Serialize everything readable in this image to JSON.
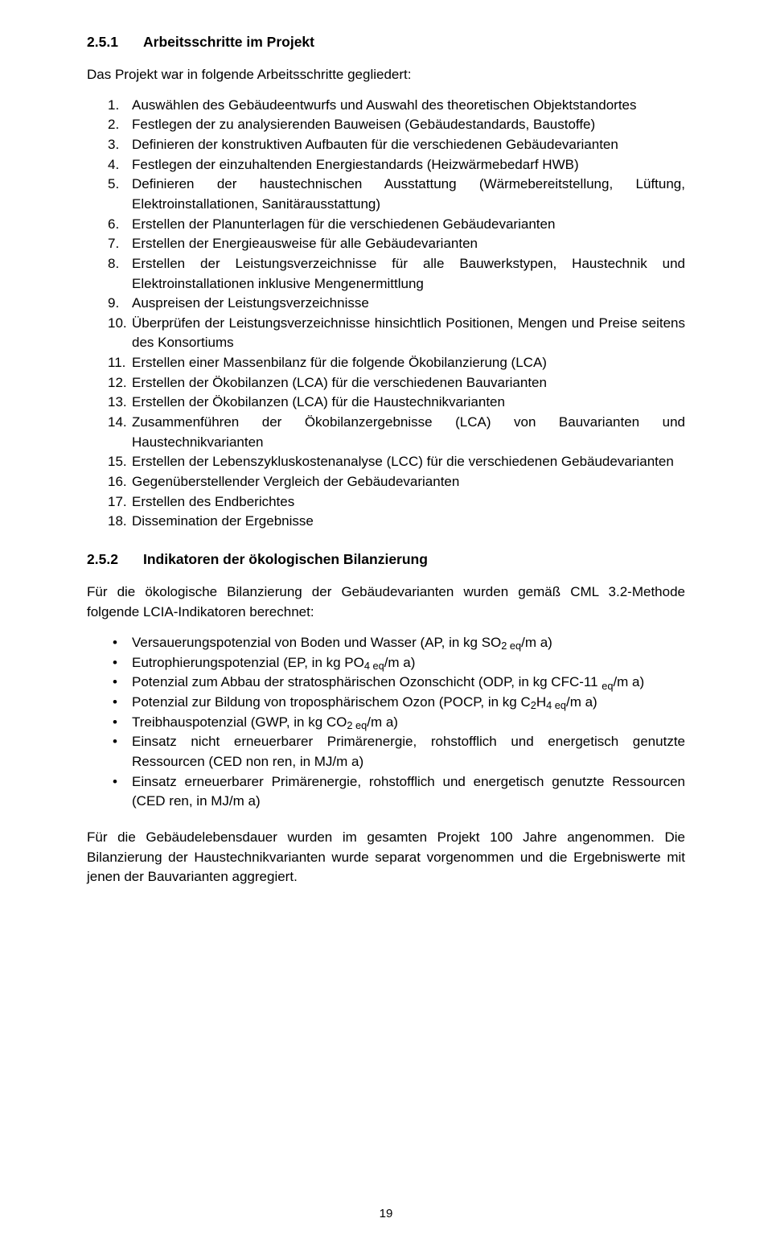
{
  "section1": {
    "number": "2.5.1",
    "title": "Arbeitsschritte im Projekt",
    "intro": "Das Projekt war in folgende Arbeitsschritte gegliedert:",
    "items": [
      {
        "n": "1.",
        "t": "Auswählen des Gebäudeentwurfs und Auswahl des theoretischen Objektstandortes"
      },
      {
        "n": "2.",
        "t": "Festlegen der zu analysierenden Bauweisen (Gebäudestandards, Baustoffe)"
      },
      {
        "n": "3.",
        "t": "Definieren der konstruktiven Aufbauten für die verschiedenen Gebäudevarianten"
      },
      {
        "n": "4.",
        "t": "Festlegen der einzuhaltenden Energiestandards (Heizwärmebedarf HWB)"
      },
      {
        "n": "5.",
        "t": "Definieren der haustechnischen Ausstattung (Wärmebereitstellung, Lüftung, Elektroinstallationen, Sanitärausstattung)"
      },
      {
        "n": "6.",
        "t": "Erstellen der Planunterlagen für die verschiedenen Gebäudevarianten"
      },
      {
        "n": "7.",
        "t": "Erstellen der Energieausweise für alle Gebäudevarianten"
      },
      {
        "n": "8.",
        "t": "Erstellen der Leistungsverzeichnisse für alle Bauwerkstypen, Haustechnik und Elektroinstallationen inklusive Mengenermittlung"
      },
      {
        "n": "9.",
        "t": "Auspreisen der Leistungsverzeichnisse"
      },
      {
        "n": "10.",
        "t": "Überprüfen der Leistungsverzeichnisse hinsichtlich Positionen, Mengen und Preise seitens des Konsortiums"
      },
      {
        "n": "11.",
        "t": "Erstellen einer Massenbilanz für die folgende Ökobilanzierung (LCA)"
      },
      {
        "n": "12.",
        "t": "Erstellen der Ökobilanzen (LCA) für die verschiedenen Bauvarianten"
      },
      {
        "n": "13.",
        "t": "Erstellen der Ökobilanzen (LCA) für die Haustechnikvarianten"
      },
      {
        "n": "14.",
        "t": "Zusammenführen der Ökobilanzergebnisse (LCA) von Bauvarianten und Haustechnikvarianten"
      },
      {
        "n": "15.",
        "t": "Erstellen der Lebenszykluskostenanalyse (LCC) für die verschiedenen Gebäudevarianten"
      },
      {
        "n": "16.",
        "t": "Gegenüberstellender Vergleich der Gebäudevarianten"
      },
      {
        "n": "17.",
        "t": "Erstellen des Endberichtes"
      },
      {
        "n": "18.",
        "t": "Dissemination der Ergebnisse"
      }
    ]
  },
  "section2": {
    "number": "2.5.2",
    "title": "Indikatoren der ökologischen Bilanzierung",
    "intro": "Für die ökologische Bilanzierung der Gebäudevarianten wurden gemäß CML 3.2-Methode folgende LCIA-Indikatoren berechnet:",
    "items": [
      "Versauerungspotenzial von Boden und Wasser (AP, in kg SO<span class=\"sub\">2 eq</span>/m  a)",
      "Eutrophierungspotenzial (EP, in kg PO<span class=\"sub\">4 eq</span>/m  a)",
      "Potenzial zum Abbau der stratosphärischen Ozonschicht (ODP, in kg CFC-11 <span class=\"sub\">eq</span>/m  a)",
      "Potenzial zur Bildung von troposphärischem Ozon (POCP, in kg C<span class=\"sub\">2</span>H<span class=\"sub\">4 eq</span>/m  a)",
      "Treibhauspotenzial (GWP, in kg CO<span class=\"sub\">2 eq</span>/m  a)",
      "Einsatz nicht erneuerbarer Primärenergie, rohstofflich und energetisch genutzte Ressourcen (CED non ren, in MJ/m  a)",
      "Einsatz erneuerbarer Primärenergie, rohstofflich und energetisch genutzte Ressourcen (CED ren, in MJ/m  a)"
    ],
    "closing": "Für die Gebäudelebensdauer wurden im gesamten Projekt 100 Jahre angenommen. Die Bilanzierung der Haustechnikvarianten wurde separat vorgenommen und die Ergebniswerte mit jenen der Bauvarianten aggregiert."
  },
  "pageNumber": "19",
  "colors": {
    "text": "#000000",
    "background": "#ffffff"
  }
}
